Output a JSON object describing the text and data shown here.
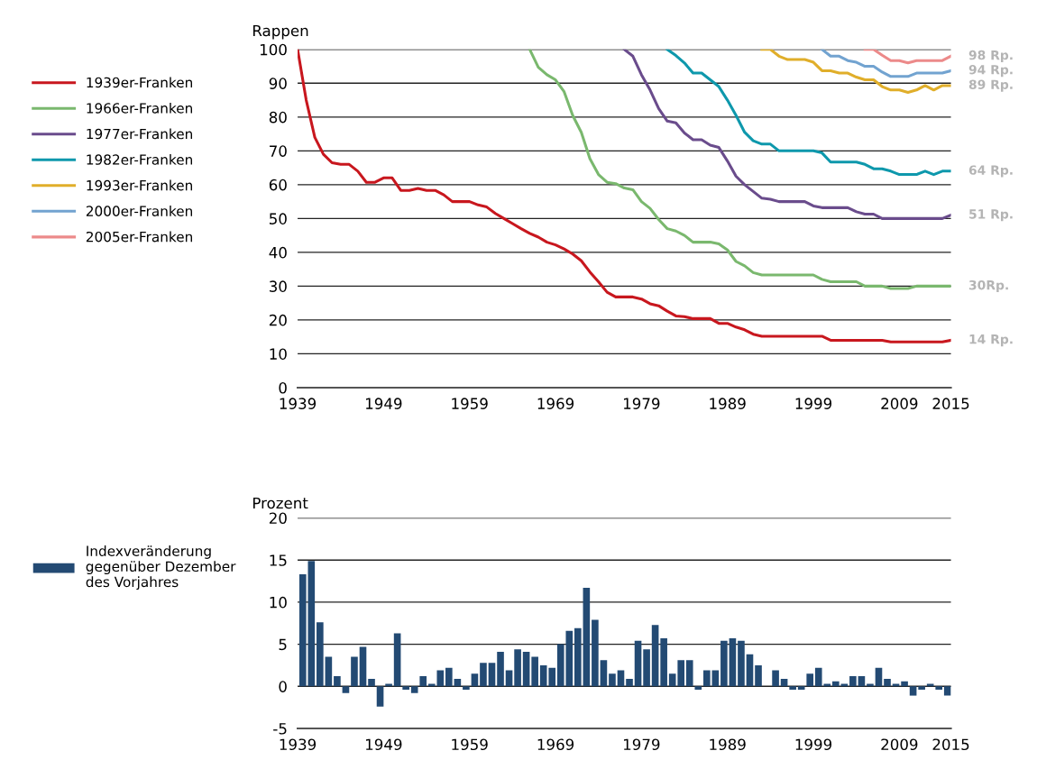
{
  "chart_data": [
    {
      "type": "line",
      "ylabel": "Rappen",
      "xlim": [
        1939,
        2015
      ],
      "xticks": [
        1939,
        1949,
        1959,
        1969,
        1979,
        1989,
        1999,
        2009,
        2015
      ],
      "ylim": [
        0,
        100
      ],
      "yticks": [
        0,
        10,
        20,
        30,
        40,
        50,
        60,
        70,
        80,
        90,
        100
      ],
      "grid": "y",
      "legend": "left",
      "marker": "none",
      "line_style": "solid",
      "series": [
        {
          "name": "1939er-Franken",
          "color": "#c8171e",
          "x": [
            1939,
            1940,
            1941,
            1942,
            1943,
            1944,
            1945,
            1946,
            1947,
            1948,
            1949,
            1950,
            1951,
            1952,
            1953,
            1954,
            1955,
            1956,
            1957,
            1958,
            1959,
            1960,
            1961,
            1962,
            1963,
            1964,
            1965,
            1966,
            1967,
            1968,
            1969,
            1970,
            1971,
            1972,
            1973,
            1974,
            1975,
            1976,
            1977,
            1978,
            1979,
            1980,
            1981,
            1982,
            1983,
            1984,
            1985,
            1986,
            1987,
            1988,
            1989,
            1990,
            1991,
            1992,
            1993,
            1994,
            1995,
            1996,
            1997,
            1998,
            1999,
            2000,
            2001,
            2002,
            2003,
            2004,
            2005,
            2006,
            2007,
            2008,
            2009,
            2010,
            2011,
            2012,
            2013,
            2014,
            2015
          ],
          "values": [
            100,
            85,
            74,
            69,
            66.5,
            66,
            66,
            64,
            60.7,
            60.7,
            62,
            62,
            58.3,
            58.3,
            58.9,
            58.3,
            58.3,
            57,
            55,
            55,
            55,
            54,
            53.4,
            51.5,
            50,
            48.5,
            47,
            45.6,
            44.5,
            43,
            42.2,
            41,
            39.5,
            37.5,
            34.2,
            31.3,
            28.2,
            26.8,
            26.8,
            26.8,
            26.2,
            24.8,
            24.2,
            22.6,
            21.2,
            21,
            20.4,
            20.4,
            20.4,
            19,
            19,
            17.9,
            17.1,
            15.8,
            15.2,
            15.2,
            15.2,
            15.2,
            15.2,
            15.2,
            15.2,
            15.2,
            14,
            14,
            14,
            14,
            14,
            14,
            14,
            13.5,
            13.5,
            13.5,
            13.5,
            13.5,
            13.5,
            13.5,
            14
          ]
        },
        {
          "name": "1966er-Franken",
          "color": "#7ab86e",
          "x": [
            1966,
            1967,
            1968,
            1969,
            1970,
            1971,
            1972,
            1973,
            1974,
            1975,
            1976,
            1977,
            1978,
            1979,
            1980,
            1981,
            1982,
            1983,
            1984,
            1985,
            1986,
            1987,
            1988,
            1989,
            1990,
            1991,
            1992,
            1993,
            1994,
            1995,
            1996,
            1997,
            1998,
            1999,
            2000,
            2001,
            2002,
            2003,
            2004,
            2005,
            2006,
            2007,
            2008,
            2009,
            2010,
            2011,
            2012,
            2013,
            2014,
            2015
          ],
          "values": [
            100,
            94.7,
            92.5,
            91,
            87.5,
            80.5,
            75.5,
            67.7,
            63,
            60.7,
            60.3,
            59,
            58.5,
            55,
            53,
            49.7,
            47,
            46.3,
            45,
            43,
            43,
            43,
            42.5,
            40.7,
            37.3,
            36,
            34,
            33.3,
            33.3,
            33.3,
            33.3,
            33.3,
            33.3,
            33.3,
            32,
            31.3,
            31.3,
            31.3,
            31.3,
            30,
            30,
            30,
            29.3,
            29.3,
            29.3,
            30,
            30,
            30,
            30,
            30
          ]
        },
        {
          "name": "1977er-Franken",
          "color": "#6a4c8c",
          "x": [
            1977,
            1978,
            1979,
            1980,
            1981,
            1982,
            1983,
            1984,
            1985,
            1986,
            1987,
            1988,
            1989,
            1990,
            1991,
            1992,
            1993,
            1994,
            1995,
            1996,
            1997,
            1998,
            1999,
            2000,
            2001,
            2002,
            2003,
            2004,
            2005,
            2006,
            2007,
            2008,
            2009,
            2010,
            2011,
            2012,
            2013,
            2014,
            2015
          ],
          "values": [
            100,
            98,
            92.5,
            88,
            82.5,
            78.8,
            78.3,
            75.3,
            73.3,
            73.3,
            71.7,
            71,
            67,
            62.5,
            60,
            58,
            56,
            55.7,
            55,
            55,
            55,
            55,
            53.7,
            53.2,
            53.2,
            53.2,
            53.2,
            52,
            51.3,
            51.3,
            50,
            50,
            50,
            50,
            50,
            50,
            50,
            50,
            51
          ]
        },
        {
          "name": "1982er-Franken",
          "color": "#0e98ac",
          "x": [
            1982,
            1983,
            1984,
            1985,
            1986,
            1987,
            1988,
            1989,
            1990,
            1991,
            1992,
            1993,
            1994,
            1995,
            1996,
            1997,
            1998,
            1999,
            2000,
            2001,
            2002,
            2003,
            2004,
            2005,
            2006,
            2007,
            2008,
            2009,
            2010,
            2011,
            2012,
            2013,
            2014,
            2015
          ],
          "values": [
            100,
            98.2,
            96,
            93,
            93,
            91,
            89,
            85,
            80.5,
            75.5,
            73,
            72,
            72,
            70,
            70,
            70,
            70,
            70,
            69.4,
            66.7,
            66.7,
            66.7,
            66.7,
            66,
            64.7,
            64.7,
            64,
            63,
            63,
            63,
            64,
            63,
            64,
            64
          ]
        },
        {
          "name": "1993er-Franken",
          "color": "#e0ae2a",
          "x": [
            1993,
            1994,
            1995,
            1996,
            1997,
            1998,
            1999,
            2000,
            2001,
            2002,
            2003,
            2004,
            2005,
            2006,
            2007,
            2008,
            2009,
            2010,
            2011,
            2012,
            2013,
            2014,
            2015
          ],
          "values": [
            100,
            100,
            98,
            97,
            97,
            97,
            96.2,
            93.7,
            93.7,
            93,
            93,
            91.8,
            91,
            91,
            89,
            88,
            88,
            87.3,
            88,
            89.3,
            88,
            89.3,
            89.3
          ]
        },
        {
          "name": "2000er-Franken",
          "color": "#72a3d0",
          "x": [
            2000,
            2001,
            2002,
            2003,
            2004,
            2005,
            2006,
            2007,
            2008,
            2009,
            2010,
            2011,
            2012,
            2013,
            2014,
            2015
          ],
          "values": [
            100,
            98,
            98,
            96.7,
            96.2,
            95,
            95,
            93.3,
            92,
            92,
            92,
            93,
            93,
            93,
            93,
            93.7
          ]
        },
        {
          "name": "2005er-Franken",
          "color": "#ec8a8a",
          "x": [
            2005,
            2006,
            2007,
            2008,
            2009,
            2010,
            2011,
            2012,
            2013,
            2014,
            2015
          ],
          "values": [
            100,
            100,
            98.3,
            96.7,
            96.7,
            96,
            96.7,
            96.7,
            96.7,
            96.7,
            98
          ]
        }
      ],
      "annotations": [
        "98 Rp.",
        "94 Rp.",
        "89 Rp.",
        "64 Rp.",
        "51 Rp.",
        "30Rp.",
        "14 Rp."
      ]
    },
    {
      "type": "bar",
      "ylabel": "Prozent",
      "xlim": [
        1939,
        2015
      ],
      "xticks": [
        1939,
        1949,
        1959,
        1969,
        1979,
        1989,
        1999,
        2009,
        2015
      ],
      "ylim": [
        -5,
        20
      ],
      "yticks": [
        -5,
        0,
        5,
        10,
        15,
        20
      ],
      "grid": "y",
      "legend": "left",
      "series": [
        {
          "name": "Indexveränderung\ngegenüber Dezember\ndes Vorjahres",
          "color": "#234a73",
          "x": [
            1940,
            1941,
            1942,
            1943,
            1944,
            1945,
            1946,
            1947,
            1948,
            1949,
            1950,
            1951,
            1952,
            1953,
            1954,
            1955,
            1956,
            1957,
            1958,
            1959,
            1960,
            1961,
            1962,
            1963,
            1964,
            1965,
            1966,
            1967,
            1968,
            1969,
            1970,
            1971,
            1972,
            1973,
            1974,
            1975,
            1976,
            1977,
            1978,
            1979,
            1980,
            1981,
            1982,
            1983,
            1984,
            1985,
            1986,
            1987,
            1988,
            1989,
            1990,
            1991,
            1992,
            1993,
            1994,
            1995,
            1996,
            1997,
            1998,
            1999,
            2000,
            2001,
            2002,
            2003,
            2004,
            2005,
            2006,
            2007,
            2008,
            2009,
            2010,
            2011,
            2012,
            2013,
            2014,
            2015
          ],
          "values": [
            13.3,
            14.9,
            7.6,
            3.5,
            1.2,
            -0.8,
            3.5,
            4.7,
            0.9,
            -2.4,
            0.3,
            6.3,
            -0.4,
            -0.8,
            1.2,
            0.3,
            1.9,
            2.2,
            0.9,
            -0.4,
            1.5,
            2.8,
            2.8,
            4.1,
            1.9,
            4.4,
            4.1,
            3.5,
            2.5,
            2.2,
            5.0,
            6.6,
            6.9,
            11.7,
            7.9,
            3.1,
            1.5,
            1.9,
            0.9,
            5.4,
            4.4,
            7.3,
            5.7,
            1.5,
            3.1,
            3.1,
            -0.4,
            1.9,
            1.9,
            5.4,
            5.7,
            5.4,
            3.8,
            2.5,
            0,
            1.9,
            0.9,
            -0.4,
            -0.4,
            1.5,
            2.2,
            0.3,
            0.6,
            0.3,
            1.2,
            1.2,
            0.3,
            2.2,
            0.9,
            0.3,
            0.6,
            -1.1,
            -0.4,
            0.3,
            -0.4,
            -1.1
          ]
        }
      ]
    }
  ]
}
